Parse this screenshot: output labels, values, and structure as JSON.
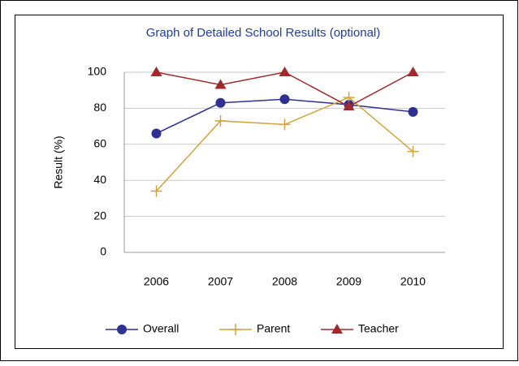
{
  "chart_data": {
    "type": "line",
    "title": "Graph of Detailed School Results (optional)",
    "y_label": "Result (%)",
    "categories": [
      "2006",
      "2007",
      "2008",
      "2009",
      "2010"
    ],
    "series": [
      {
        "name": "Overall",
        "color": "#2e3192",
        "marker": "circle",
        "values": [
          66,
          83,
          85,
          82,
          78
        ]
      },
      {
        "name": "Parent",
        "color": "#d4a43a",
        "marker": "plus",
        "values": [
          34,
          73,
          71,
          86,
          56
        ]
      },
      {
        "name": "Teacher",
        "color": "#a3282b",
        "marker": "triangle",
        "values": [
          100,
          93,
          100,
          81,
          100
        ]
      }
    ],
    "ylim": [
      0,
      100
    ],
    "yticks": [
      0,
      20,
      40,
      60,
      80,
      100
    ],
    "grid": true,
    "legend": "bottom"
  }
}
